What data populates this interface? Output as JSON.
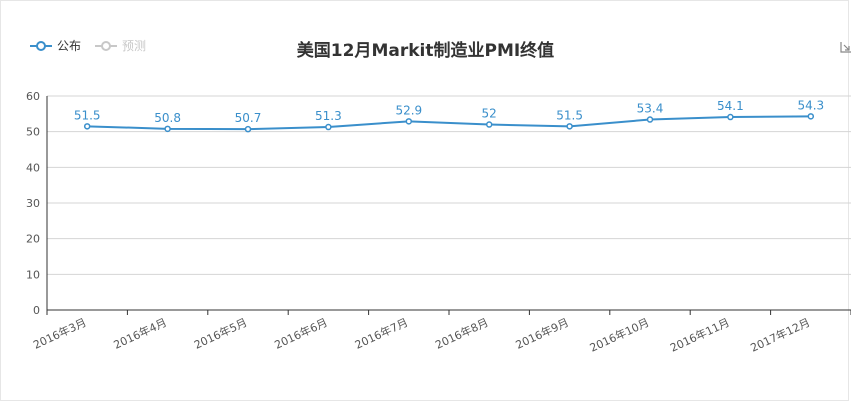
{
  "title": "美国12月Markit制造业PMI终值",
  "legend": [
    {
      "label": "公布",
      "color": "#3a8fcb",
      "active": true
    },
    {
      "label": "预测",
      "color": "#c8c8c8",
      "active": false
    }
  ],
  "toolbar": {
    "icon": "restore-icon"
  },
  "chart_data": {
    "type": "line",
    "title": "美国12月Markit制造业PMI终值",
    "categories": [
      "2016年3月",
      "2016年4月",
      "2016年5月",
      "2016年6月",
      "2016年7月",
      "2016年8月",
      "2016年9月",
      "2016年10月",
      "2016年11月",
      "2017年12月"
    ],
    "series": [
      {
        "name": "公布",
        "values": [
          51.5,
          50.8,
          50.7,
          51.3,
          52.9,
          52,
          51.5,
          53.4,
          54.1,
          54.3
        ],
        "color": "#3a8fcb"
      }
    ],
    "data_labels": [
      "51.5",
      "50.8",
      "50.7",
      "51.3",
      "52.9",
      "52",
      "51.5",
      "53.4",
      "54.1",
      "54.3"
    ],
    "y_ticks": [
      "0",
      "10",
      "20",
      "30",
      "40",
      "50",
      "60"
    ],
    "ylim": [
      0,
      60
    ],
    "grid": true,
    "legend_position": "top-left"
  }
}
